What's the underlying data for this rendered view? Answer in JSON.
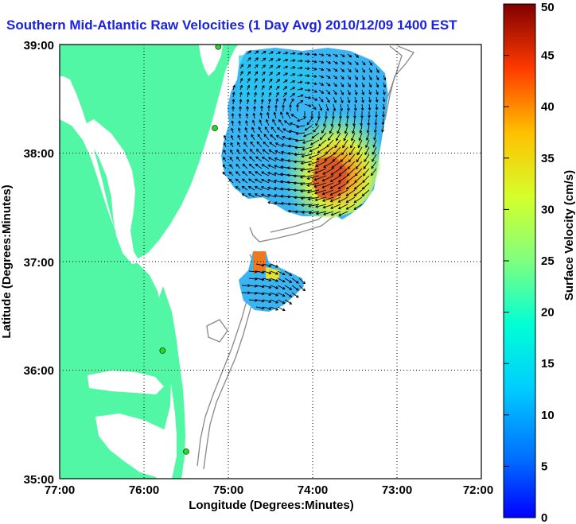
{
  "title": "Southern Mid-Atlantic Raw Velocities (1 Day Avg) 2010/12/09 1400 EST",
  "x_axis": {
    "label": "Longitude (Degrees:Minutes)",
    "ticks": [
      "77:00",
      "76:00",
      "75:00",
      "74:00",
      "73:00",
      "72:00"
    ]
  },
  "y_axis": {
    "label": "Latitude (Degrees:Minutes)",
    "ticks": [
      "39:00",
      "38:00",
      "37:00",
      "36:00",
      "35:00"
    ]
  },
  "colorbar": {
    "label": "Surface Velocity (cm/s)",
    "ticks": [
      "50",
      "45",
      "40",
      "35",
      "30",
      "25",
      "20",
      "15",
      "10",
      "5",
      "0"
    ],
    "range": [
      0,
      50
    ]
  },
  "colors": {
    "land": "#52f7a6",
    "water": "#ffffff",
    "title": "#1a22e0",
    "station": "#22dd22",
    "bathymetry": "#888888"
  },
  "map": {
    "lon_range": [
      -77,
      -72
    ],
    "lat_range": [
      35,
      39
    ],
    "grid": "dotted",
    "stations": [
      {
        "lon": -75.12,
        "lat": 38.98
      },
      {
        "lon": -75.16,
        "lat": 38.23
      },
      {
        "lon": -75.78,
        "lat": 36.18
      },
      {
        "lon": -75.5,
        "lat": 35.25
      }
    ]
  }
}
